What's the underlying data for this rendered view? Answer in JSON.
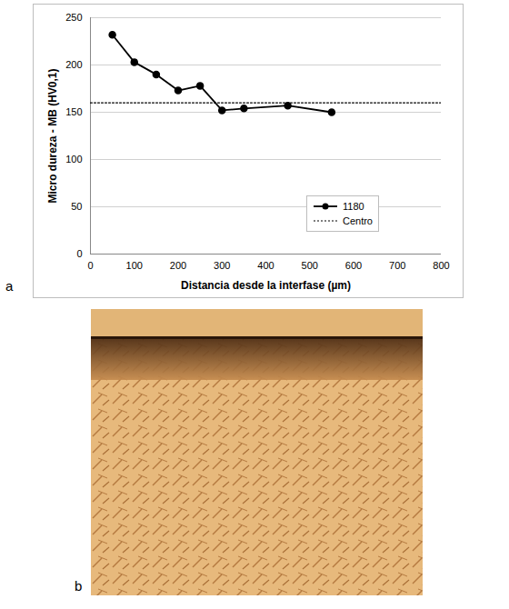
{
  "panels": [
    "a",
    "b"
  ],
  "chart_data": {
    "type": "line",
    "xlabel": "Distancia desde la interfase (µm)",
    "ylabel": "Micro dureza - MB (HV0,1)",
    "series": [
      {
        "name": "1180",
        "color": "#000000",
        "marker": "circle",
        "line_style": "solid",
        "x": [
          50,
          100,
          150,
          200,
          250,
          300,
          350,
          450,
          550
        ],
        "values": [
          232,
          203,
          190,
          173,
          178,
          152,
          154,
          157,
          150
        ]
      },
      {
        "name": "Centro",
        "color": "#000000",
        "line_style": "dotted",
        "x": [
          0,
          800
        ],
        "values": [
          160,
          160
        ]
      }
    ],
    "xlim": [
      0,
      800
    ],
    "xticks": [
      0,
      100,
      200,
      300,
      400,
      500,
      600,
      700,
      800
    ],
    "ylim": [
      0,
      250
    ],
    "yticks": [
      0,
      50,
      100,
      150,
      200,
      250
    ],
    "grid": true,
    "legend": "lower right"
  }
}
